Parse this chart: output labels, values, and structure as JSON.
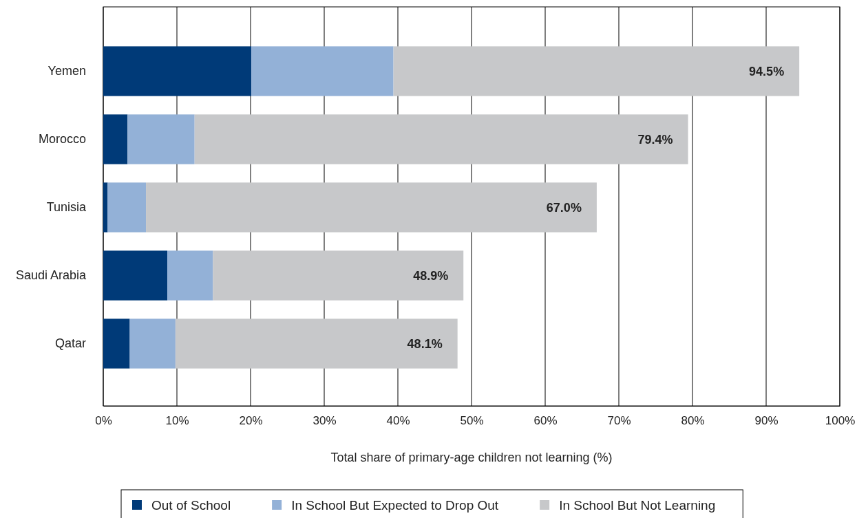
{
  "chart_data": {
    "type": "bar",
    "orientation": "horizontal",
    "stacked": true,
    "xlabel": "Total share of primary-age children not learning (%)",
    "categories": [
      "Yemen",
      "Morocco",
      "Tunisia",
      "Saudi Arabia",
      "Qatar"
    ],
    "series": [
      {
        "name": "Out of School",
        "color": "#003a78",
        "values": [
          20.1,
          3.3,
          0.6,
          8.7,
          3.6
        ]
      },
      {
        "name": "In School But Expected to Drop Out",
        "color": "#93b1d7",
        "values": [
          19.3,
          9.1,
          5.2,
          6.2,
          6.2
        ]
      },
      {
        "name": "In School But Not Learning",
        "color": "#c7c8ca",
        "values": [
          55.1,
          67.0,
          61.2,
          34.0,
          38.3
        ]
      }
    ],
    "totals": [
      "94.5%",
      "79.4%",
      "67.0%",
      "48.9%",
      "48.1%"
    ],
    "xlim": [
      0,
      100
    ],
    "xticks": [
      {
        "value": 0,
        "label": "0%"
      },
      {
        "value": 10,
        "label": "10%"
      },
      {
        "value": 20,
        "label": "20%"
      },
      {
        "value": 30,
        "label": "30%"
      },
      {
        "value": 40,
        "label": "40%"
      },
      {
        "value": 50,
        "label": "50%"
      },
      {
        "value": 60,
        "label": "60%"
      },
      {
        "value": 70,
        "label": "70%"
      },
      {
        "value": 80,
        "label": "80%"
      },
      {
        "value": 90,
        "label": "90%"
      },
      {
        "value": 100,
        "label": "100%"
      }
    ],
    "grid": "x",
    "legend": "bottom"
  }
}
